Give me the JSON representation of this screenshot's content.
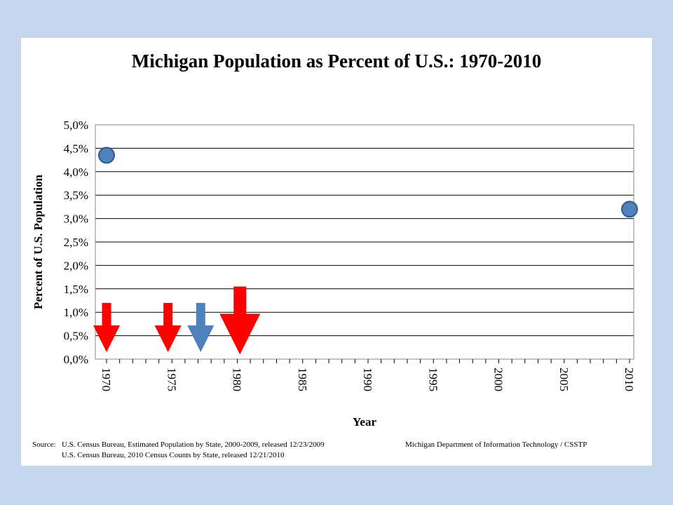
{
  "chart_data": {
    "type": "scatter",
    "title": "Michigan Population as Percent of U.S.: 1970-2010",
    "xlabel": "Year",
    "ylabel": "Percent of U.S. Population",
    "xlim": [
      1970,
      2010
    ],
    "ylim": [
      0,
      5
    ],
    "x_ticks": [
      "1970",
      "1975",
      "1980",
      "1985",
      "1990",
      "1995",
      "2000",
      "2005",
      "2010"
    ],
    "y_ticks": [
      "0,0%",
      "0,5%",
      "1,0%",
      "1,5%",
      "2,0%",
      "2,5%",
      "3,0%",
      "3,5%",
      "4,0%",
      "4,5%",
      "5,0%"
    ],
    "grid": true,
    "points": [
      {
        "x": 1970,
        "y": 4.35
      },
      {
        "x": 2010,
        "y": 3.2
      }
    ],
    "point_color": "#4f81bd",
    "arrows": [
      {
        "x": 1970,
        "color": "#ff0000",
        "top": 1.2,
        "bottom": 0.15,
        "size": "small"
      },
      {
        "x": 1974.7,
        "color": "#ff0000",
        "top": 1.2,
        "bottom": 0.15,
        "size": "small"
      },
      {
        "x": 1977.2,
        "color": "#4f81bd",
        "top": 1.2,
        "bottom": 0.15,
        "size": "small"
      },
      {
        "x": 1980.2,
        "color": "#ff0000",
        "top": 1.55,
        "bottom": 0.1,
        "size": "large"
      }
    ]
  },
  "source": {
    "label": "Source:",
    "line1": "U.S. Census Bureau, Estimated Population by State, 2000-2009, released 12/23/2009",
    "line2": "U.S. Census Bureau, 2010 Census  Counts by State, released 12/21/2010",
    "credit": "Michigan Department of Information Technology / CSSTP"
  }
}
